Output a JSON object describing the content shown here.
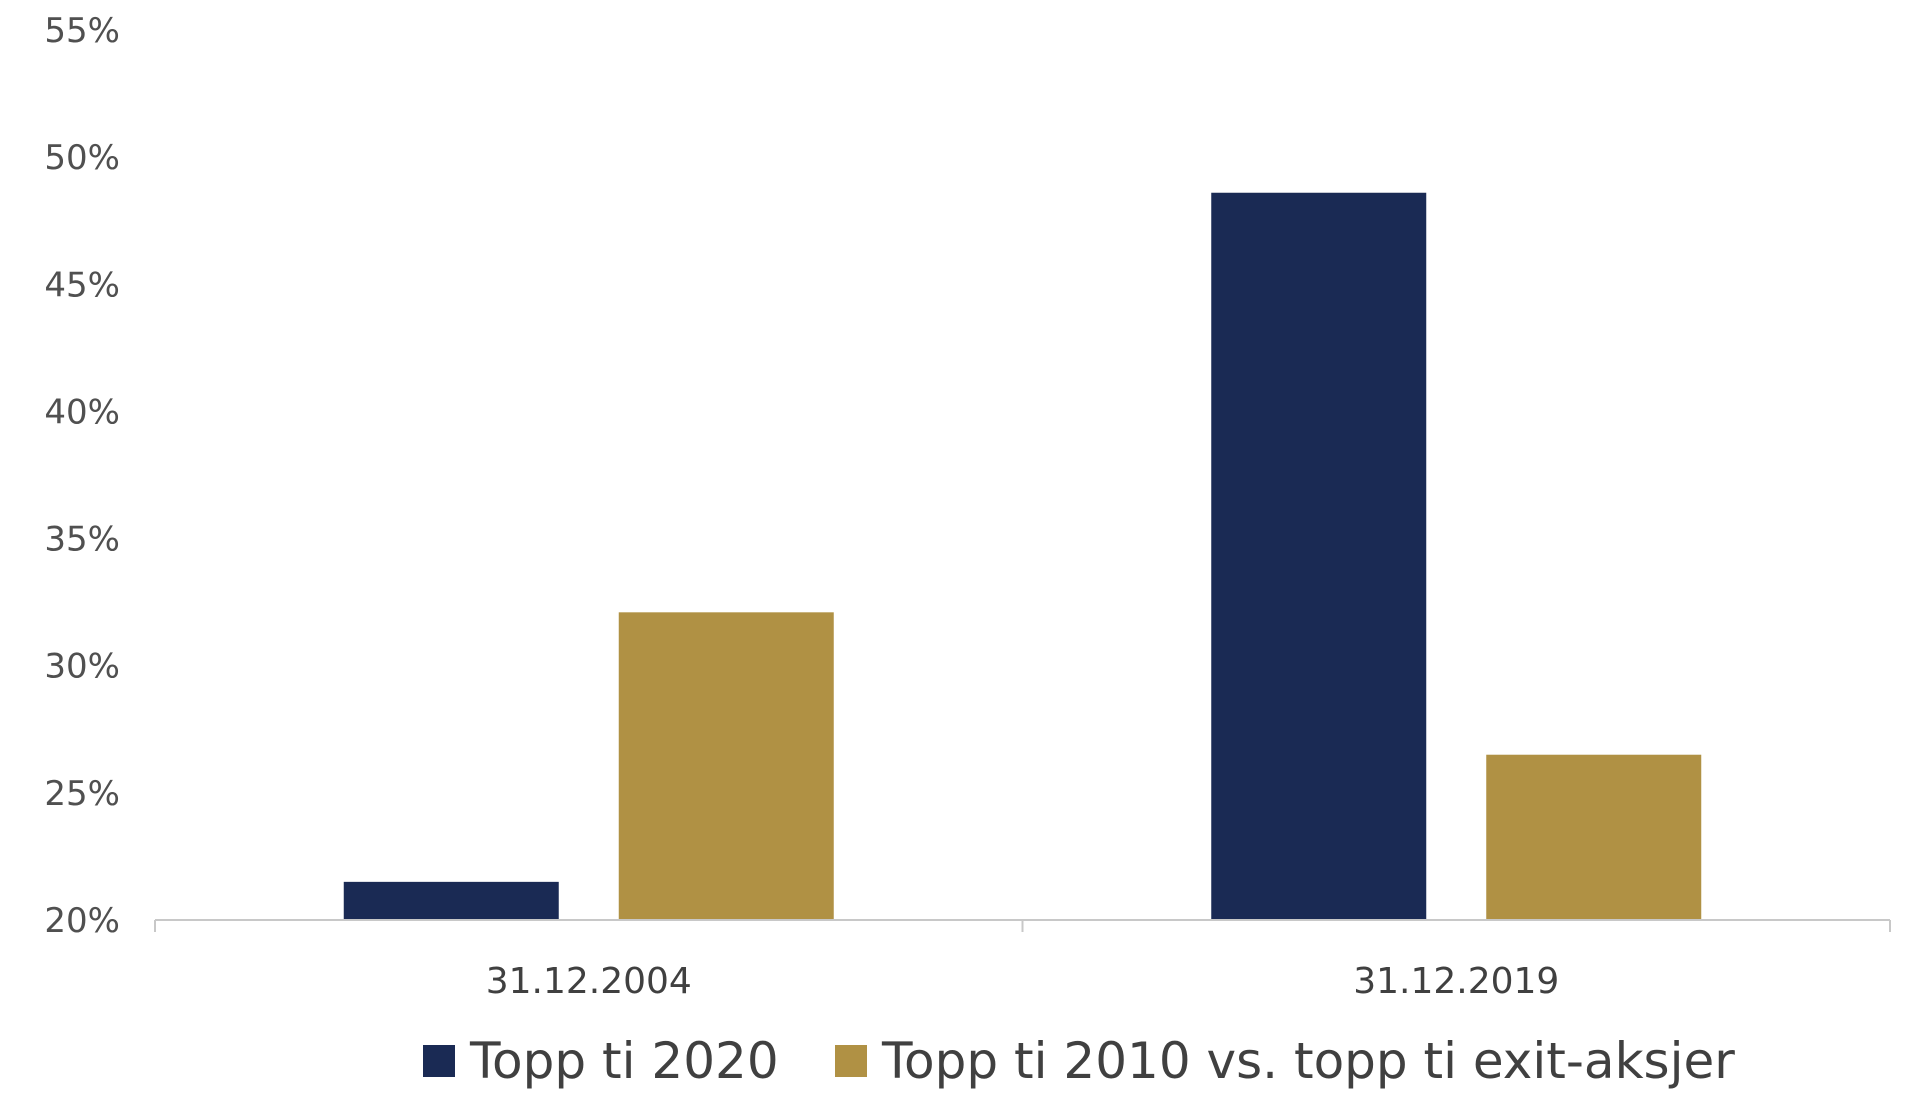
{
  "chart_data": {
    "type": "bar",
    "title": "",
    "xlabel": "",
    "ylabel": "",
    "categories": [
      "31.12.2004",
      "31.12.2019"
    ],
    "series": [
      {
        "name": "Topp ti 2020",
        "values": [
          21.5,
          48.6
        ],
        "color": "#1a2a54"
      },
      {
        "name": "Topp ti 2010 vs. topp ti exit-aksjer",
        "values": [
          32.1,
          26.5
        ],
        "color": "#b09144"
      }
    ],
    "ylim": [
      20,
      55
    ],
    "yticks": [
      20,
      25,
      30,
      35,
      40,
      45,
      50,
      55
    ],
    "ytick_labels": [
      "20%",
      "25%",
      "30%",
      "35%",
      "40%",
      "45%",
      "50%",
      "55%"
    ],
    "grid": false,
    "legend_position": "bottom"
  }
}
